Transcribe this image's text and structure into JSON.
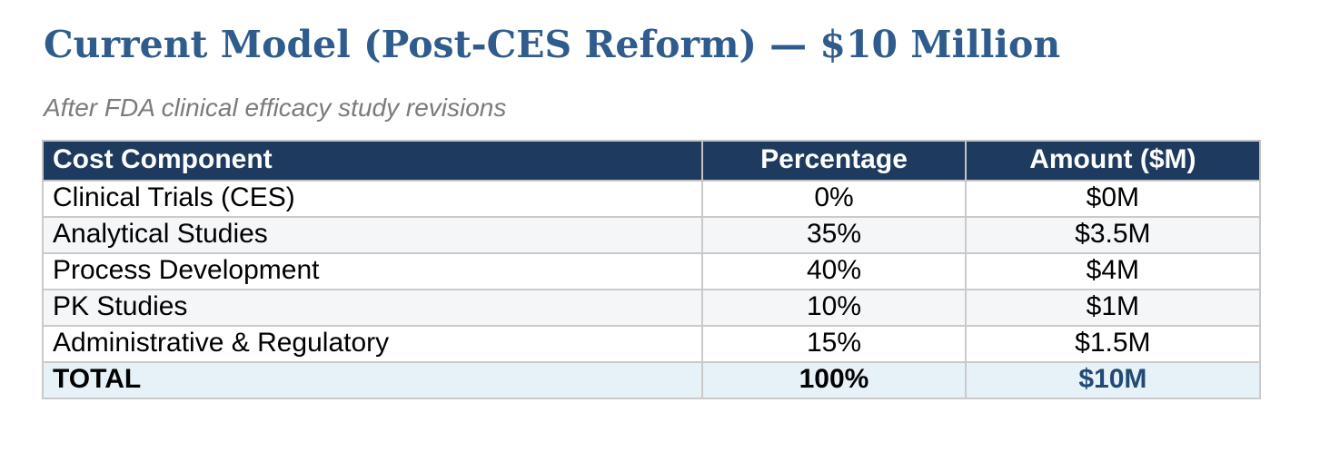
{
  "page": {
    "title": "Current Model (Post-CES Reform) — $10 Million",
    "subtitle": "After FDA clinical efficacy study revisions"
  },
  "colors": {
    "title_text": "#2F5C8C",
    "subtitle_text": "#7B7B7B",
    "header_bg": "#1F3A5F",
    "header_text": "#FFFFFF",
    "row_alt_bg": "#F4F6F8",
    "total_row_bg": "#E7F1F8",
    "total_amount_text": "#234A72",
    "cell_border": "#CACACA"
  },
  "table": {
    "columns": [
      "Cost Component",
      "Percentage",
      "Amount ($M)"
    ],
    "rows": [
      {
        "component": "Clinical Trials (CES)",
        "percentage": "0%",
        "amount": "$0M"
      },
      {
        "component": "Analytical Studies",
        "percentage": "35%",
        "amount": "$3.5M"
      },
      {
        "component": "Process Development",
        "percentage": "40%",
        "amount": "$4M"
      },
      {
        "component": "PK Studies",
        "percentage": "10%",
        "amount": "$1M"
      },
      {
        "component": "Administrative & Regulatory",
        "percentage": "15%",
        "amount": "$1.5M"
      }
    ],
    "total": {
      "component": "TOTAL",
      "percentage": "100%",
      "amount": "$10M"
    }
  }
}
